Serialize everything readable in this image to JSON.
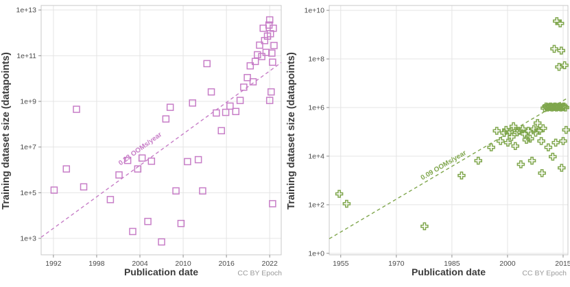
{
  "chart_data": [
    {
      "type": "scatter",
      "title": "",
      "xlabel": "Publication date",
      "ylabel": "Training dataset size (datapoints)",
      "attribution": "CC BY Epoch",
      "marker": "open-square",
      "color": "#c77dc7",
      "grid": true,
      "x_range": [
        1990.3,
        2023.6
      ],
      "y_scale": "log",
      "y_exponent_range": [
        2.28,
        13.2
      ],
      "xticks": [
        1992,
        1998,
        2004,
        2010,
        2016,
        2022
      ],
      "xtick_labels": [
        "1992",
        "1998",
        "2004",
        "2010",
        "2016",
        "2022"
      ],
      "ytick_exponents": [
        3,
        5,
        7,
        9,
        11,
        13
      ],
      "ytick_labels": [
        "1e+3",
        "1e+5",
        "1e+7",
        "1e+9",
        "1e+11",
        "1e+13"
      ],
      "trend": {
        "label": "0.23 OOMs/year",
        "ooms_per_year": 0.23,
        "x": [
          1990.3,
          2023.6
        ],
        "y_exponent": [
          3.05,
          10.7
        ],
        "label_anchor": {
          "x": 2004.2,
          "y_exponent": 6.85
        }
      },
      "points": [
        [
          1992.1,
          130000.0
        ],
        [
          1993.8,
          1100000.0
        ],
        [
          1995.2,
          450000000.0
        ],
        [
          1996.2,
          180000.0
        ],
        [
          1999.9,
          50000.0
        ],
        [
          2001.1,
          600000.0
        ],
        [
          2002.3,
          2600000.0
        ],
        [
          2003.0,
          2000.0
        ],
        [
          2003.7,
          1100000.0
        ],
        [
          2004.3,
          3300000.0
        ],
        [
          2005.1,
          5500.0
        ],
        [
          2005.6,
          2400000.0
        ],
        [
          2007.0,
          700.0
        ],
        [
          2007.6,
          170000000.0
        ],
        [
          2008.2,
          550000000.0
        ],
        [
          2009.0,
          120000.0
        ],
        [
          2009.7,
          4500.0
        ],
        [
          2010.6,
          2300000.0
        ],
        [
          2011.3,
          850000000.0
        ],
        [
          2012.1,
          2800000.0
        ],
        [
          2012.7,
          120000.0
        ],
        [
          2013.3,
          45000000000.0
        ],
        [
          2013.9,
          2600000000.0
        ],
        [
          2014.6,
          310000000.0
        ],
        [
          2015.3,
          52000000.0
        ],
        [
          2015.9,
          330000000.0
        ],
        [
          2016.5,
          620000000.0
        ],
        [
          2017.3,
          360000000.0
        ],
        [
          2017.9,
          1100000000.0
        ],
        [
          2018.4,
          4200000000.0
        ],
        [
          2018.9,
          11000000000.0
        ],
        [
          2019.3,
          36000000000.0
        ],
        [
          2019.7,
          7200000000.0
        ],
        [
          2020.0,
          56000000000.0
        ],
        [
          2020.3,
          110000000000.0
        ],
        [
          2020.6,
          290000000000.0
        ],
        [
          2020.9,
          92000000000.0
        ],
        [
          2021.1,
          1600000000000.0
        ],
        [
          2021.3,
          460000000000.0
        ],
        [
          2021.5,
          140000000000.0
        ],
        [
          2021.7,
          720000000000.0
        ],
        [
          2021.9,
          2200000000000.0
        ],
        [
          2022.0,
          3700000000000.0
        ],
        [
          2022.0,
          1100000000.0
        ],
        [
          2022.1,
          920000000000.0
        ],
        [
          2022.2,
          2600000000.0
        ],
        [
          2022.3,
          130000000000.0
        ],
        [
          2022.4,
          52000000000.0
        ],
        [
          2022.5,
          1600000000000.0
        ],
        [
          2022.6,
          280000000000.0
        ],
        [
          2022.4,
          33000.0
        ]
      ]
    },
    {
      "type": "scatter",
      "title": "",
      "xlabel": "Publication date",
      "ylabel": "Training dataset size (datapoints)",
      "attribution": "CC BY Epoch",
      "marker": "open-plus",
      "color": "#7fa64c",
      "grid": true,
      "x_range": [
        1951.9,
        2016.3
      ],
      "y_scale": "log",
      "y_exponent_range": [
        -0.06,
        10.2
      ],
      "xticks": [
        1955,
        1970,
        1985,
        2000,
        2015
      ],
      "xtick_labels": [
        "1955",
        "1970",
        "1985",
        "2000",
        "2015"
      ],
      "ytick_exponents": [
        0,
        2,
        4,
        6,
        8,
        10
      ],
      "ytick_labels": [
        "1e+0",
        "1e+2",
        "1e+4",
        "1e+6",
        "1e+8",
        "1e+10"
      ],
      "trend": {
        "label": "0.09 OOMs/year",
        "ooms_per_year": 0.09,
        "x": [
          1951.9,
          2016.3
        ],
        "y_exponent": [
          0.6,
          6.4
        ],
        "label_anchor": {
          "x": 1983.0,
          "y_exponent": 3.55
        }
      },
      "points": [
        [
          1954.6,
          280.0
        ],
        [
          1956.6,
          110.0
        ],
        [
          1977.6,
          13.0
        ],
        [
          1987.6,
          1600.0
        ],
        [
          1992.1,
          6500.0
        ],
        [
          1995.6,
          23000.0
        ],
        [
          1997.1,
          110000.0
        ],
        [
          1998.1,
          42000.0
        ],
        [
          1999.1,
          90000.0
        ],
        [
          1999.6,
          120000.0
        ],
        [
          2000.1,
          36000.0
        ],
        [
          2000.6,
          100000.0
        ],
        [
          2001.1,
          62000.0
        ],
        [
          2001.6,
          170000.0
        ],
        [
          2002.1,
          26000.0
        ],
        [
          2002.6,
          95000.0
        ],
        [
          2003.1,
          110000.0
        ],
        [
          2003.6,
          4600.0
        ],
        [
          2004.1,
          130000.0
        ],
        [
          2004.6,
          82000.0
        ],
        [
          2005.1,
          47000.0
        ],
        [
          2005.6,
          110000.0
        ],
        [
          2006.1,
          52000.0
        ],
        [
          2006.6,
          6500.0
        ],
        [
          2007.1,
          130000.0
        ],
        [
          2007.6,
          92000.0
        ],
        [
          2008.1,
          230000.0
        ],
        [
          2008.6,
          110000.0
        ],
        [
          2009.1,
          42000.0
        ],
        [
          2009.6,
          140000.0
        ],
        [
          2009.3,
          2000.0
        ],
        [
          2010.0,
          950000.0
        ],
        [
          2010.4,
          1100000.0
        ],
        [
          2010.8,
          1000000.0
        ],
        [
          2011.2,
          1050000.0
        ],
        [
          2011.6,
          1100000.0
        ],
        [
          2012.0,
          1000000.0
        ],
        [
          2012.4,
          1050000.0
        ],
        [
          2012.8,
          1100000.0
        ],
        [
          2013.2,
          1000000.0
        ],
        [
          2013.6,
          1050000.0
        ],
        [
          2014.0,
          1100000.0
        ],
        [
          2014.4,
          1000000.0
        ],
        [
          2014.8,
          1050000.0
        ],
        [
          2015.2,
          1100000.0
        ],
        [
          2015.6,
          1000000.0
        ],
        [
          2012.6,
          260000000.0
        ],
        [
          2013.3,
          3600000000.0
        ],
        [
          2013.9,
          47000000.0
        ],
        [
          2014.2,
          2900000000.0
        ],
        [
          2014.5,
          220000000.0
        ],
        [
          2015.4,
          55000000.0
        ],
        [
          2011.0,
          23000.0
        ],
        [
          2012.2,
          9500.0
        ],
        [
          2013.0,
          36000.0
        ],
        [
          2014.6,
          3300.0
        ],
        [
          2015.0,
          42000.0
        ],
        [
          2015.8,
          120000.0
        ]
      ]
    }
  ]
}
